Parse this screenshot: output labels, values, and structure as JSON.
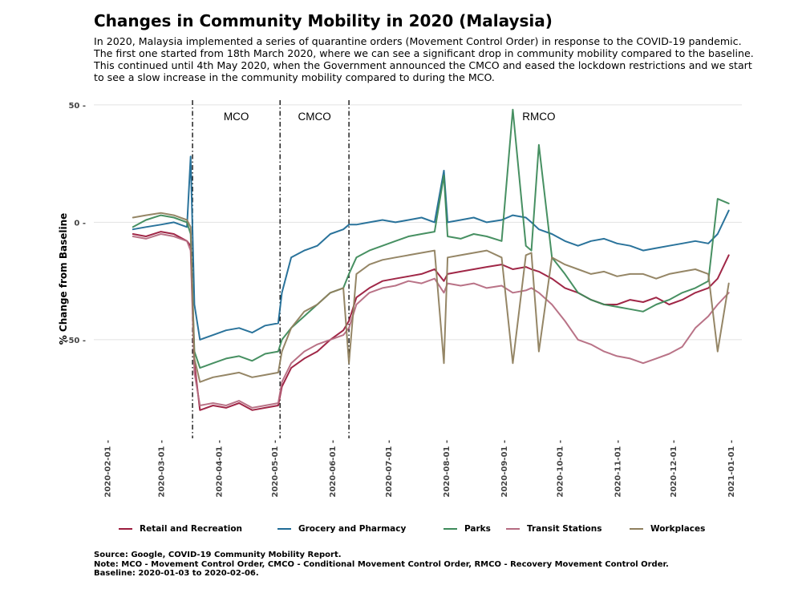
{
  "chart_data": {
    "type": "line",
    "title": "Changes in Community Mobility in 2020 (Malaysia)",
    "subtitle_lines": [
      "In 2020, Malaysia implemented a series of quarantine orders (Movement Control Order) in response to the COVID-19 pandemic.",
      "The first one started from 18th March 2020, where we can see a significant drop in community mobility compared to the baseline.",
      "This continued until 4th May 2020, when the Government announced the CMCO and eased the lockdown restrictions and we start",
      "to see a slow increase in the community mobility compared to during the MCO."
    ],
    "ylabel": "% Change from Baseline",
    "xlabel": "",
    "ylim": [
      -92,
      52
    ],
    "xlim": [
      "2020-01-25",
      "2021-01-07"
    ],
    "y_ticks": [
      50,
      0,
      -50
    ],
    "y_tick_labels": [
      "50",
      "0",
      "-50"
    ],
    "x_ticks": [
      "2020-02-01",
      "2020-03-01",
      "2020-04-01",
      "2020-05-01",
      "2020-06-01",
      "2020-07-01",
      "2020-08-01",
      "2020-09-01",
      "2020-10-01",
      "2020-11-01",
      "2020-12-01",
      "2021-01-01"
    ],
    "grid": "horizontal",
    "legend_position": "bottom",
    "phases": [
      {
        "label": "MCO",
        "start": "2020-03-18",
        "end": "2020-05-04"
      },
      {
        "label": "CMCO",
        "start": "2020-05-04",
        "end": "2020-06-10"
      },
      {
        "label": "RMCO",
        "start": "2020-06-10",
        "end": "2020-12-31"
      }
    ],
    "phase_boundaries": [
      "2020-03-18",
      "2020-05-04",
      "2020-06-10"
    ],
    "x_dates": [
      "2020-02-15",
      "2020-02-22",
      "2020-03-01",
      "2020-03-08",
      "2020-03-15",
      "2020-03-17",
      "2020-03-19",
      "2020-03-22",
      "2020-03-29",
      "2020-04-05",
      "2020-04-12",
      "2020-04-19",
      "2020-04-26",
      "2020-05-03",
      "2020-05-05",
      "2020-05-10",
      "2020-05-17",
      "2020-05-24",
      "2020-05-31",
      "2020-06-07",
      "2020-06-10",
      "2020-06-14",
      "2020-06-21",
      "2020-06-28",
      "2020-07-05",
      "2020-07-12",
      "2020-07-19",
      "2020-07-26",
      "2020-07-31",
      "2020-08-02",
      "2020-08-09",
      "2020-08-16",
      "2020-08-23",
      "2020-08-31",
      "2020-09-06",
      "2020-09-13",
      "2020-09-16",
      "2020-09-20",
      "2020-09-27",
      "2020-10-04",
      "2020-10-11",
      "2020-10-18",
      "2020-10-25",
      "2020-11-01",
      "2020-11-08",
      "2020-11-15",
      "2020-11-22",
      "2020-11-29",
      "2020-12-06",
      "2020-12-13",
      "2020-12-20",
      "2020-12-25",
      "2020-12-31"
    ],
    "series": [
      {
        "name": "Retail and Recreation",
        "color": "#9b1b3d",
        "values": [
          -5,
          -6,
          -4,
          -5,
          -8,
          -10,
          -60,
          -80,
          -78,
          -79,
          -77,
          -80,
          -79,
          -78,
          -70,
          -62,
          -58,
          -55,
          -50,
          -46,
          -42,
          -32,
          -28,
          -25,
          -24,
          -23,
          -22,
          -20,
          -25,
          -22,
          -21,
          -20,
          -19,
          -18,
          -20,
          -19,
          -20,
          -21,
          -24,
          -28,
          -30,
          -33,
          -35,
          -35,
          -33,
          -34,
          -32,
          -35,
          -33,
          -30,
          -28,
          -24,
          -14
        ]
      },
      {
        "name": "Grocery and Pharmacy",
        "color": "#1f6b96",
        "values": [
          -3,
          -2,
          -1,
          0,
          -2,
          28,
          -35,
          -50,
          -48,
          -46,
          -45,
          -47,
          -44,
          -43,
          -30,
          -15,
          -12,
          -10,
          -5,
          -3,
          -1,
          -1,
          0,
          1,
          0,
          1,
          2,
          0,
          22,
          0,
          1,
          2,
          0,
          1,
          3,
          2,
          0,
          -3,
          -5,
          -8,
          -10,
          -8,
          -7,
          -9,
          -10,
          -12,
          -11,
          -10,
          -9,
          -8,
          -9,
          -5,
          5
        ]
      },
      {
        "name": "Parks",
        "color": "#3d8a5a",
        "values": [
          -2,
          1,
          3,
          2,
          0,
          -5,
          -55,
          -62,
          -60,
          -58,
          -57,
          -59,
          -56,
          -55,
          -50,
          -45,
          -40,
          -35,
          -30,
          -28,
          -22,
          -15,
          -12,
          -10,
          -8,
          -6,
          -5,
          -4,
          20,
          -6,
          -7,
          -5,
          -6,
          -8,
          48,
          -10,
          -12,
          33,
          -15,
          -22,
          -30,
          -33,
          -35,
          -36,
          -37,
          -38,
          -35,
          -33,
          -30,
          -28,
          -25,
          10,
          8
        ]
      },
      {
        "name": "Transit Stations",
        "color": "#b56b81",
        "values": [
          -6,
          -7,
          -5,
          -6,
          -8,
          -12,
          -64,
          -78,
          -77,
          -78,
          -76,
          -79,
          -78,
          -77,
          -68,
          -60,
          -55,
          -52,
          -50,
          -48,
          -45,
          -35,
          -30,
          -28,
          -27,
          -25,
          -26,
          -24,
          -30,
          -26,
          -27,
          -26,
          -28,
          -27,
          -30,
          -29,
          -28,
          -30,
          -35,
          -42,
          -50,
          -52,
          -55,
          -57,
          -58,
          -60,
          -58,
          -56,
          -53,
          -45,
          -40,
          -35,
          -30
        ]
      },
      {
        "name": "Workplaces",
        "color": "#8f7f5e",
        "values": [
          2,
          3,
          4,
          3,
          1,
          -2,
          -58,
          -68,
          -66,
          -65,
          -64,
          -66,
          -65,
          -64,
          -55,
          -45,
          -38,
          -35,
          -30,
          -28,
          -60,
          -22,
          -18,
          -16,
          -15,
          -14,
          -13,
          -12,
          -60,
          -15,
          -14,
          -13,
          -12,
          -15,
          -60,
          -14,
          -13,
          -55,
          -15,
          -18,
          -20,
          -22,
          -21,
          -23,
          -22,
          -22,
          -24,
          -22,
          -21,
          -20,
          -22,
          -55,
          -26
        ]
      }
    ]
  },
  "caption_lines": [
    "Source: Google, COVID-19 Community Mobility Report.",
    "Note: MCO - Movement Control Order, CMCO - Conditional Movement Control Order, RMCO - Recovery Movement Control Order.",
    "Baseline: 2020-01-03 to 2020-02-06."
  ]
}
